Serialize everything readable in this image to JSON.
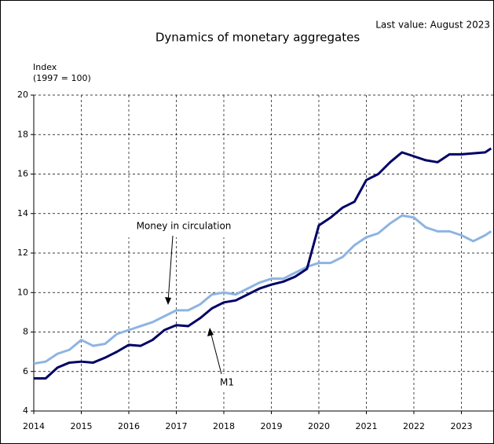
{
  "chart_data": {
    "type": "line",
    "title": "Dynamics of monetary aggregates",
    "subtitle": "Last value: August 2023",
    "y_label": [
      "Index",
      "(1997 = 100)"
    ],
    "annotations": [
      "Money in circulation",
      "M1"
    ],
    "x": [
      2014,
      2014.25,
      2014.5,
      2014.75,
      2015,
      2015.25,
      2015.5,
      2015.75,
      2016,
      2016.25,
      2016.5,
      2016.75,
      2017,
      2017.25,
      2017.5,
      2017.75,
      2018,
      2018.25,
      2018.5,
      2018.75,
      2019,
      2019.25,
      2019.5,
      2019.75,
      2020,
      2020.25,
      2020.5,
      2020.75,
      2021,
      2021.25,
      2021.5,
      2021.75,
      2022,
      2022.25,
      2022.5,
      2022.75,
      2023,
      2023.25,
      2023.5,
      2023.625
    ],
    "series": [
      {
        "name": "M1",
        "color": "#000066",
        "values": [
          5.65,
          5.65,
          6.2,
          6.45,
          6.5,
          6.45,
          6.7,
          7.0,
          7.35,
          7.3,
          7.6,
          8.1,
          8.35,
          8.3,
          8.7,
          9.2,
          9.5,
          9.6,
          9.9,
          10.2,
          10.4,
          10.55,
          10.8,
          11.2,
          13.4,
          13.8,
          14.3,
          14.6,
          15.7,
          16.0,
          16.6,
          17.1,
          16.9,
          16.7,
          16.6,
          17.0,
          17.0,
          17.05,
          17.1,
          17.3
        ]
      },
      {
        "name": "Money in circulation",
        "color": "#8db4e2",
        "values": [
          6.4,
          6.5,
          6.9,
          7.1,
          7.6,
          7.3,
          7.4,
          7.9,
          8.1,
          8.3,
          8.5,
          8.8,
          9.1,
          9.1,
          9.4,
          9.9,
          10.0,
          9.9,
          10.2,
          10.5,
          10.7,
          10.7,
          11.0,
          11.3,
          11.5,
          11.5,
          11.8,
          12.4,
          12.8,
          13.0,
          13.5,
          13.9,
          13.8,
          13.3,
          13.1,
          13.1,
          12.9,
          12.6,
          12.9,
          13.1
        ]
      }
    ],
    "xlim": [
      2014,
      2023.67
    ],
    "xticks": [
      2014,
      2015,
      2016,
      2017,
      2018,
      2019,
      2020,
      2021,
      2022,
      2023
    ],
    "ylim": [
      4,
      20
    ],
    "yticks": [
      4,
      6,
      8,
      10,
      12,
      14,
      16,
      18,
      20
    ],
    "grid": true
  }
}
